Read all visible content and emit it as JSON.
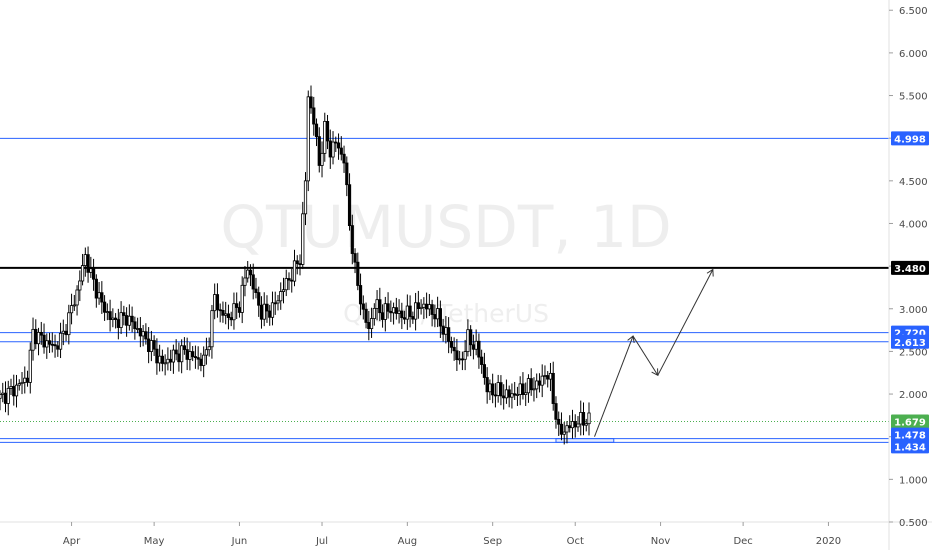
{
  "chart_data": {
    "type": "candlestick",
    "watermark": {
      "symbol": "QTUMUSDT, 1D",
      "name": "Qtum / TetherUS"
    },
    "y_axis": {
      "ticks": [
        "6.500",
        "6.000",
        "5.500",
        "5.000",
        "4.500",
        "4.000",
        "3.500",
        "3.000",
        "2.500",
        "2.000",
        "1.500",
        "1.000",
        "0.500"
      ],
      "range": [
        0.5,
        6.62
      ]
    },
    "x_axis": {
      "ticks": [
        {
          "label": "Apr",
          "date": "2019-04-01"
        },
        {
          "label": "May",
          "date": "2019-05-01"
        },
        {
          "label": "Jun",
          "date": "2019-06-01"
        },
        {
          "label": "Jul",
          "date": "2019-07-01"
        },
        {
          "label": "Aug",
          "date": "2019-08-01"
        },
        {
          "label": "Sep",
          "date": "2019-09-01"
        },
        {
          "label": "Oct",
          "date": "2019-10-01"
        },
        {
          "label": "Nov",
          "date": "2019-11-01"
        },
        {
          "label": "Dec",
          "date": "2019-12-01"
        },
        {
          "label": "2020",
          "date": "2020-01-01"
        }
      ],
      "range": [
        "2019-03-06",
        "2020-01-23"
      ]
    },
    "series": [
      {
        "type": "close_trace",
        "points": [
          [
            "2019-03-06",
            1.95
          ],
          [
            "2019-03-12",
            2.08
          ],
          [
            "2019-03-16",
            2.2
          ],
          [
            "2019-03-18",
            2.72
          ],
          [
            "2019-03-22",
            2.62
          ],
          [
            "2019-03-26",
            2.55
          ],
          [
            "2019-03-29",
            2.7
          ],
          [
            "2019-04-03",
            3.2
          ],
          [
            "2019-04-06",
            3.62
          ],
          [
            "2019-04-08",
            3.4
          ],
          [
            "2019-04-12",
            3.05
          ],
          [
            "2019-04-16",
            2.85
          ],
          [
            "2019-04-21",
            2.9
          ],
          [
            "2019-04-26",
            2.72
          ],
          [
            "2019-04-30",
            2.55
          ],
          [
            "2019-05-04",
            2.35
          ],
          [
            "2019-05-08",
            2.45
          ],
          [
            "2019-05-12",
            2.5
          ],
          [
            "2019-05-16",
            2.42
          ],
          [
            "2019-05-19",
            2.38
          ],
          [
            "2019-05-21",
            2.65
          ],
          [
            "2019-05-23",
            3.15
          ],
          [
            "2019-05-25",
            2.95
          ],
          [
            "2019-05-28",
            2.9
          ],
          [
            "2019-06-01",
            3.05
          ],
          [
            "2019-06-04",
            3.5
          ],
          [
            "2019-06-06",
            3.25
          ],
          [
            "2019-06-09",
            2.95
          ],
          [
            "2019-06-13",
            3.0
          ],
          [
            "2019-06-17",
            3.25
          ],
          [
            "2019-06-20",
            3.4
          ],
          [
            "2019-06-23",
            3.6
          ],
          [
            "2019-06-25",
            4.5
          ],
          [
            "2019-06-26",
            5.5
          ],
          [
            "2019-06-28",
            5.2
          ],
          [
            "2019-06-30",
            4.7
          ],
          [
            "2019-07-02",
            5.1
          ],
          [
            "2019-07-04",
            4.85
          ],
          [
            "2019-07-06",
            4.95
          ],
          [
            "2019-07-09",
            4.75
          ],
          [
            "2019-07-11",
            4.0
          ],
          [
            "2019-07-13",
            3.45
          ],
          [
            "2019-07-16",
            2.95
          ],
          [
            "2019-07-18",
            2.75
          ],
          [
            "2019-07-20",
            3.05
          ],
          [
            "2019-07-23",
            2.95
          ],
          [
            "2019-07-26",
            3.0
          ],
          [
            "2019-07-30",
            2.92
          ],
          [
            "2019-08-03",
            2.95
          ],
          [
            "2019-08-06",
            3.05
          ],
          [
            "2019-08-09",
            3.0
          ],
          [
            "2019-08-12",
            2.9
          ],
          [
            "2019-08-15",
            2.7
          ],
          [
            "2019-08-18",
            2.5
          ],
          [
            "2019-08-20",
            2.35
          ],
          [
            "2019-08-23",
            2.65
          ],
          [
            "2019-08-26",
            2.55
          ],
          [
            "2019-08-28",
            2.35
          ],
          [
            "2019-08-30",
            2.05
          ],
          [
            "2019-09-03",
            2.03
          ],
          [
            "2019-09-07",
            1.98
          ],
          [
            "2019-09-10",
            2.02
          ],
          [
            "2019-09-14",
            2.08
          ],
          [
            "2019-09-18",
            2.12
          ],
          [
            "2019-09-20",
            2.25
          ],
          [
            "2019-09-22",
            2.15
          ],
          [
            "2019-09-24",
            1.75
          ],
          [
            "2019-09-25",
            1.55
          ],
          [
            "2019-09-28",
            1.6
          ],
          [
            "2019-10-01",
            1.66
          ],
          [
            "2019-10-04",
            1.7
          ],
          [
            "2019-10-06",
            1.69
          ]
        ]
      },
      {
        "type": "projection_arrow",
        "points": [
          [
            "2019-10-08",
            1.5
          ],
          [
            "2019-10-22",
            2.68
          ],
          [
            "2019-10-31",
            2.22
          ],
          [
            "2019-11-20",
            3.46
          ]
        ]
      }
    ],
    "levels": [
      {
        "value": 4.998,
        "label": "4.998",
        "color": "#2962ff",
        "style": "solid"
      },
      {
        "value": 3.48,
        "label": "3.480",
        "color": "#000000",
        "style": "solid"
      },
      {
        "value": 2.72,
        "label": "2.720",
        "color": "#2962ff",
        "style": "solid"
      },
      {
        "value": 2.613,
        "label": "2.613",
        "color": "#2962ff",
        "style": "solid"
      },
      {
        "value": 1.679,
        "label": "1.679",
        "color": "#4caf50",
        "style": "dotted"
      },
      {
        "value": 1.478,
        "label": "1.478",
        "color": "#2962ff",
        "style": "solid"
      },
      {
        "value": 1.434,
        "label": "1.434",
        "color": "#2962ff",
        "style": "solid"
      }
    ],
    "zone": {
      "from": "2019-09-24",
      "to": "2019-10-15",
      "low": 1.434,
      "high": 1.478,
      "color": "#2962ff"
    },
    "colors": {
      "candle": "#000000",
      "level_blue": "#2962ff",
      "level_black": "#000000",
      "current_price": "#4caf50"
    },
    "grid": false
  }
}
